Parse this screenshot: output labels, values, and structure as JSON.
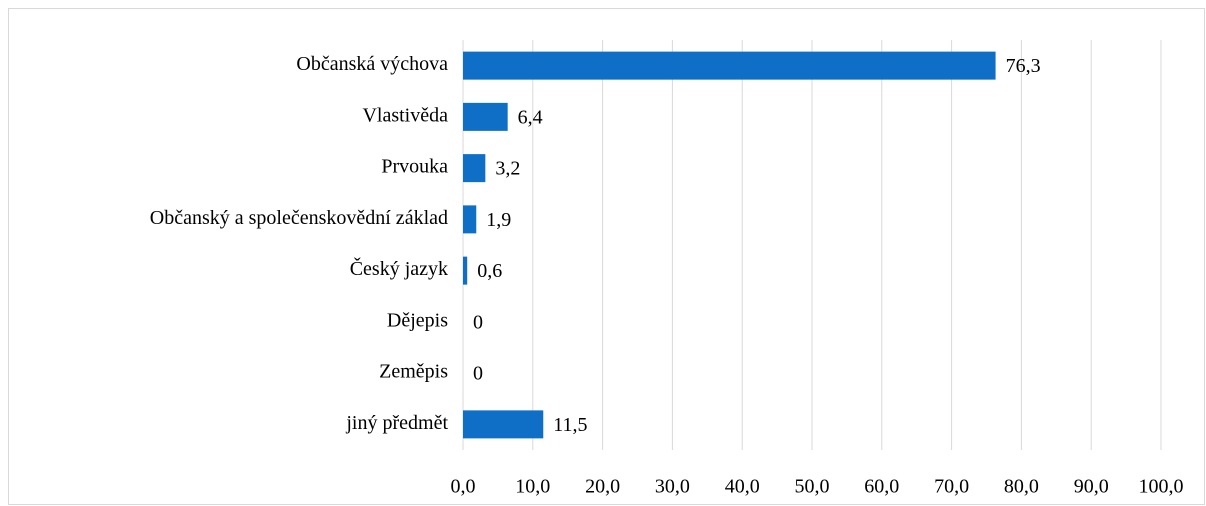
{
  "chart_data": {
    "type": "bar",
    "orientation": "horizontal",
    "categories": [
      "Občanská výchova",
      "Vlastivěda",
      "Prvouka",
      "Občanský a společenskovědní základ",
      "Český jazyk",
      "Dějepis",
      "Zeměpis",
      "jiný předmět"
    ],
    "values": [
      76.3,
      6.4,
      3.2,
      1.9,
      0.6,
      0,
      0,
      11.5
    ],
    "value_labels": [
      "76,3",
      "6,4",
      "3,2",
      "1,9",
      "0,6",
      "0",
      "0",
      "11,5"
    ],
    "color": "#0f6fc6",
    "xlim": [
      0,
      100
    ],
    "xticks": [
      {
        "value": 0,
        "label": "0,0"
      },
      {
        "value": 10,
        "label": "10,0"
      },
      {
        "value": 20,
        "label": "20,0"
      },
      {
        "value": 30,
        "label": "30,0"
      },
      {
        "value": 40,
        "label": "40,0"
      },
      {
        "value": 50,
        "label": "50,0"
      },
      {
        "value": 60,
        "label": "60,0"
      },
      {
        "value": 70,
        "label": "70,0"
      },
      {
        "value": 80,
        "label": "80,0"
      },
      {
        "value": 90,
        "label": "90,0"
      },
      {
        "value": 100,
        "label": "100,0"
      }
    ],
    "grid": true
  }
}
